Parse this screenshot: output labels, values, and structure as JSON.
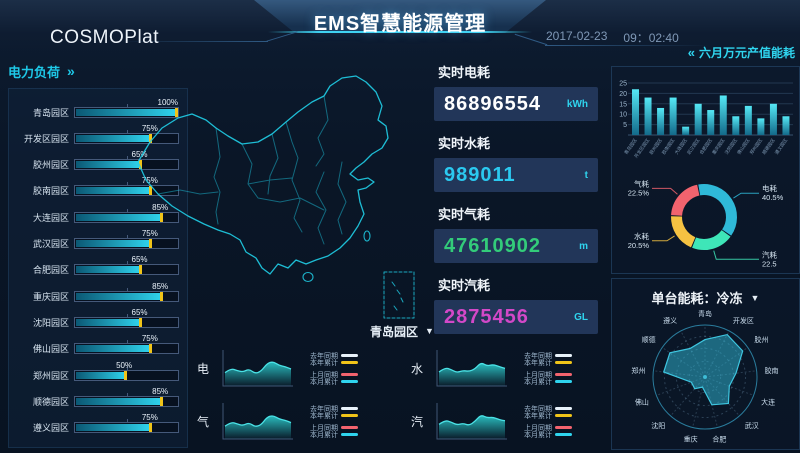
{
  "header": {
    "logo": "COSMOPlat",
    "title": "EMS智慧能源管理",
    "date": "2017-02-23",
    "time": "09：02:40"
  },
  "icons": {
    "dropdown": "▼",
    "chevrons_right": "»",
    "chevrons_left": "«"
  },
  "left_panel": {
    "title": "电力负荷"
  },
  "stats": {
    "items": [
      {
        "label": "实时电耗",
        "value": "86896554",
        "unit": "kWh",
        "color": "#ffffff"
      },
      {
        "label": "实时水耗",
        "value": "989011",
        "unit": "t",
        "color": "#2bc9f0"
      },
      {
        "label": "实时气耗",
        "value": "47610902",
        "unit": "m",
        "color": "#33cc7a"
      },
      {
        "label": "实时汽耗",
        "value": "2875456",
        "unit": "GL",
        "color": "#d348c8"
      }
    ]
  },
  "right_top": {
    "title": "六月万元产值能耗"
  },
  "radar_panel": {
    "title": "单台能耗：冷冻"
  },
  "bottom_panel": {
    "title": "青岛园区"
  },
  "chart_data": [
    {
      "id": "power_load",
      "type": "bar",
      "orientation": "horizontal",
      "title": "电力负荷",
      "categories": [
        "青岛园区",
        "开发区园区",
        "胶州园区",
        "胶南园区",
        "大连园区",
        "武汉园区",
        "合肥园区",
        "重庆园区",
        "沈阳园区",
        "佛山园区",
        "郑州园区",
        "顺德园区",
        "遵义园区"
      ],
      "values": [
        100,
        75,
        65,
        75,
        85,
        75,
        65,
        85,
        65,
        75,
        50,
        85,
        75
      ],
      "unit": "%",
      "xlim": [
        0,
        100
      ],
      "bar_color_start": "#0b5874",
      "bar_color_end": "#2fd4ee",
      "marker_color": "#f0c419"
    },
    {
      "id": "monthly_energy",
      "type": "bar",
      "title": "六月万元产值能耗",
      "categories": [
        "青岛园区",
        "开发区园区",
        "胶州园区",
        "胶南园区",
        "大连园区",
        "武汉园区",
        "合肥园区",
        "重庆园区",
        "沈阳园区",
        "佛山园区",
        "郑州园区",
        "顺德园区",
        "遵义园区"
      ],
      "values": [
        22,
        18,
        13,
        18,
        4,
        15,
        12,
        19,
        9,
        14,
        8,
        15,
        9
      ],
      "ylim": [
        0,
        25
      ],
      "yticks": [
        5,
        10,
        15,
        20,
        25
      ],
      "grid": true,
      "bar_color_top": "#55e8f5",
      "bar_color_bottom": "#136a8a"
    },
    {
      "id": "energy_share",
      "type": "pie",
      "labels": [
        "电耗",
        "汽耗",
        "水耗",
        "气耗"
      ],
      "display_values": [
        "40.5%",
        "22.5",
        "20.5%",
        "22.5%"
      ],
      "values": [
        40.5,
        22.5,
        20.5,
        22.5
      ],
      "colors": [
        "#2fb9d8",
        "#3ee6b8",
        "#f5c242",
        "#f2636e"
      ],
      "inner_radius_ratio": 0.72
    },
    {
      "id": "unit_energy_radar",
      "type": "radar",
      "title": "单台能耗：冷冻",
      "categories": [
        "青岛",
        "开发区",
        "胶州",
        "胶南",
        "大连",
        "武汉",
        "合肥",
        "重庆",
        "沈阳",
        "佛山",
        "郑州",
        "顺德",
        "遵义"
      ],
      "values": [
        72,
        92,
        88,
        60,
        50,
        68,
        55,
        20,
        30,
        28,
        80,
        82,
        62
      ],
      "max": 100,
      "fill_color": "rgba(47,185,216,0.5)",
      "stroke_color": "#3ec6e0"
    },
    {
      "id": "park_trend",
      "type": "area",
      "title": "青岛园区",
      "legend": [
        "去年同期",
        "本年累计",
        "上月同期",
        "本月累计"
      ],
      "legend_colors": [
        "#e8f2fa",
        "#f0c419",
        "#f2636e",
        "#2fd4ee"
      ],
      "area_color": "#2fd8d8",
      "series": [
        {
          "name": "电",
          "values": [
            38,
            52,
            45,
            40,
            50,
            35,
            42,
            68,
            75,
            62,
            58,
            50
          ]
        },
        {
          "name": "水",
          "values": [
            40,
            55,
            48,
            38,
            45,
            42,
            50,
            72,
            60,
            65,
            58,
            52
          ]
        },
        {
          "name": "气",
          "values": [
            36,
            50,
            44,
            38,
            48,
            34,
            40,
            66,
            72,
            60,
            56,
            48
          ]
        },
        {
          "name": "汽",
          "values": [
            42,
            56,
            50,
            40,
            46,
            38,
            52,
            74,
            64,
            66,
            58,
            54
          ]
        }
      ]
    }
  ]
}
